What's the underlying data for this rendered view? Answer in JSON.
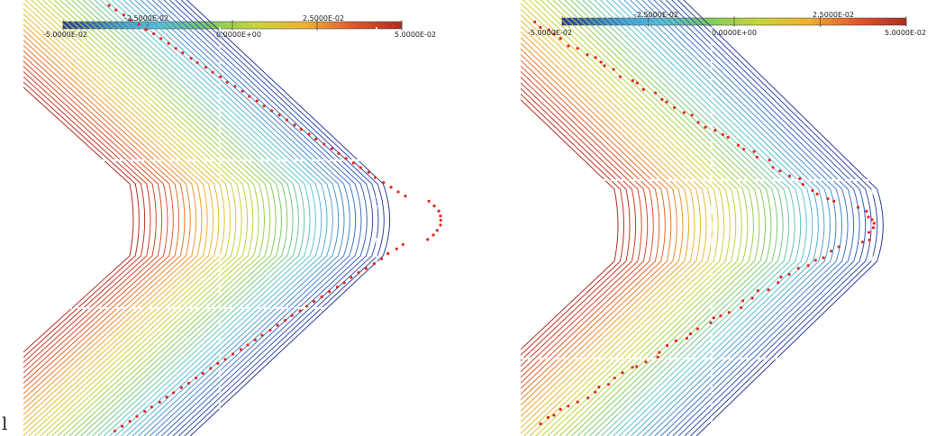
{
  "panels": [
    {
      "id": "left",
      "colorbar": {
        "top_labels": [
          "-2.5000E-02",
          "2.5000E-02"
        ],
        "bottom_labels": [
          "-5.0000E-02",
          "0.0000E+00",
          "5.0000E-02"
        ],
        "colormap": [
          "#2b3b9a",
          "#3f7fc8",
          "#5bc3d6",
          "#7fcc5a",
          "#c8d43a",
          "#f0b030",
          "#e0582a",
          "#b22b22"
        ]
      },
      "marker_color": "#e8261d",
      "interface_noise": "low"
    },
    {
      "id": "right",
      "colorbar": {
        "top_labels": [
          "-2.5000E-02",
          "2.5000E-02"
        ],
        "bottom_labels": [
          "-5.0000E-02",
          "0.0000E+00",
          "5.0000E-02"
        ],
        "colormap": [
          "#2b3b9a",
          "#3f7fc8",
          "#5bc3d6",
          "#7fcc5a",
          "#c8d43a",
          "#f0b030",
          "#e0582a",
          "#b22b22"
        ]
      },
      "marker_color": "#e8261d",
      "interface_noise": "high"
    }
  ],
  "stray_text": "l"
}
